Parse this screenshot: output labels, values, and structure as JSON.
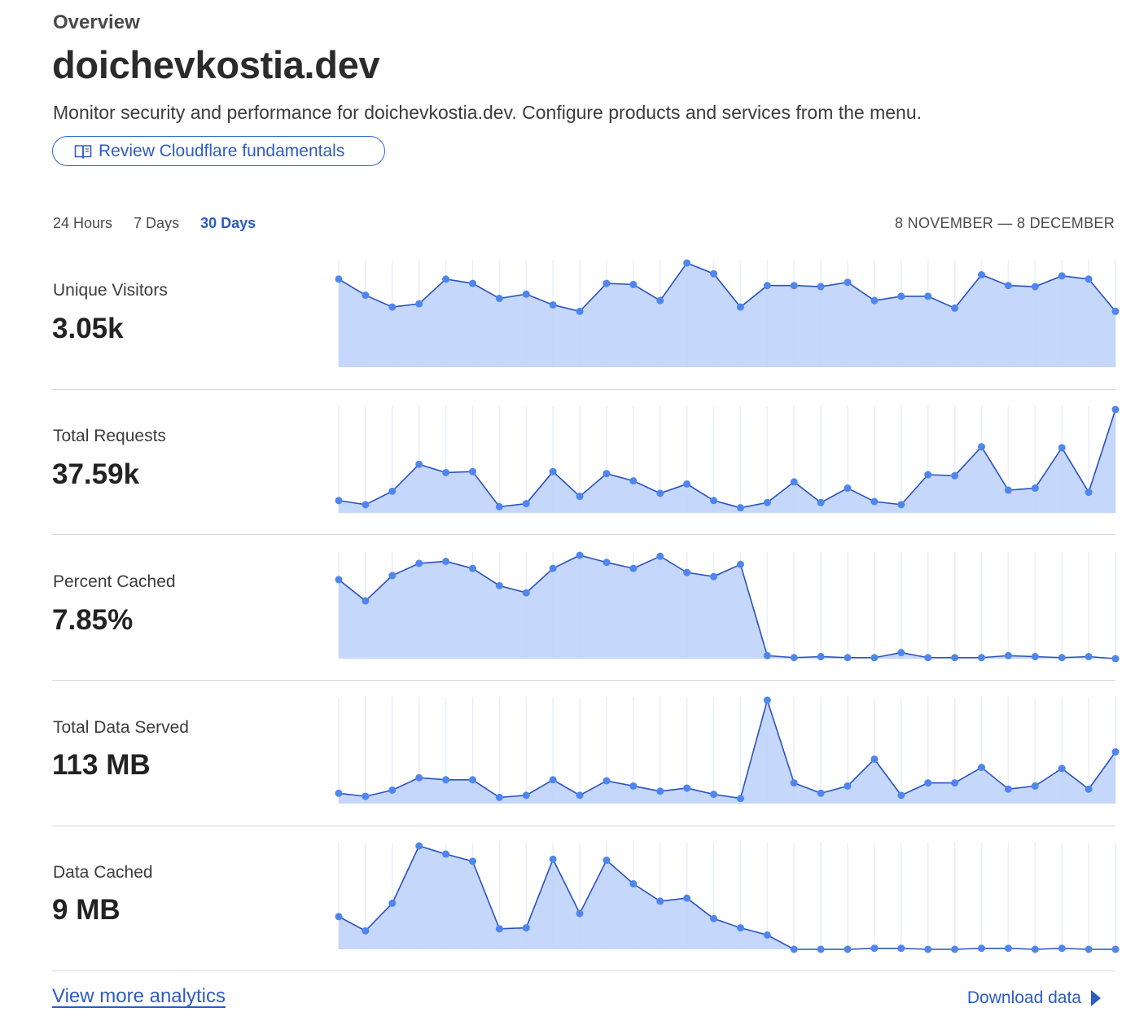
{
  "header": {
    "overview_label": "Overview",
    "title": "doichevkostia.dev",
    "description": "Monitor security and performance for doichevkostia.dev. Configure products and services from the menu.",
    "fundamentals_button": "Review Cloudflare fundamentals"
  },
  "range": {
    "tabs": [
      {
        "label": "24 Hours",
        "active": false
      },
      {
        "label": "7 Days",
        "active": false
      },
      {
        "label": "30 Days",
        "active": true
      }
    ],
    "date_label": "8 NOVEMBER — 8 DECEMBER"
  },
  "colors": {
    "accent": "#2c5cc5",
    "line": "#2a52be",
    "fill": "#c2d5fa",
    "point": "#4f86ee",
    "grid": "#e8eefb"
  },
  "metrics": [
    {
      "label": "Unique Visitors",
      "value": "3.05k"
    },
    {
      "label": "Total Requests",
      "value": "37.59k"
    },
    {
      "label": "Percent Cached",
      "value": "7.85%"
    },
    {
      "label": "Total Data Served",
      "value": "113 MB"
    },
    {
      "label": "Data Cached",
      "value": "9 MB"
    }
  ],
  "chart_data": [
    {
      "type": "area",
      "series": [
        {
          "values": [
            82,
            67,
            56,
            59,
            82,
            78,
            64,
            68,
            58,
            52,
            78,
            77,
            62,
            97,
            87,
            56,
            76,
            76,
            75,
            79,
            62,
            66,
            66,
            55,
            86,
            76,
            75,
            85,
            82,
            52
          ]
        }
      ]
    },
    {
      "type": "area",
      "series": [
        {
          "values": [
            12,
            8,
            21,
            47,
            39,
            40,
            6,
            9,
            40,
            16,
            38,
            31,
            19,
            28,
            12,
            5,
            10,
            30,
            10,
            24,
            11,
            8,
            37,
            36,
            64,
            22,
            24,
            63,
            20,
            100
          ]
        }
      ]
    },
    {
      "type": "area",
      "series": [
        {
          "values": [
            78,
            57,
            82,
            94,
            96,
            89,
            72,
            65,
            89,
            102,
            95,
            89,
            101,
            85,
            81,
            93,
            3,
            1,
            2,
            1,
            1,
            6,
            1,
            1,
            1,
            3,
            2,
            1,
            2,
            0
          ]
        }
      ]
    },
    {
      "type": "area",
      "series": [
        {
          "values": [
            10,
            7,
            13,
            25,
            23,
            23,
            6,
            8,
            23,
            8,
            22,
            17,
            12,
            15,
            9,
            5,
            100,
            20,
            10,
            17,
            43,
            8,
            20,
            20,
            35,
            14,
            17,
            34,
            14,
            50
          ]
        }
      ]
    },
    {
      "type": "area",
      "series": [
        {
          "values": [
            32,
            18,
            45,
            101,
            93,
            86,
            20,
            21,
            88,
            35,
            87,
            64,
            47,
            50,
            30,
            21,
            14,
            0,
            0,
            0,
            1,
            1,
            0,
            0,
            1,
            1,
            0,
            1,
            0,
            0
          ]
        }
      ]
    }
  ],
  "footer": {
    "view_more": "View more analytics",
    "download": "Download data"
  }
}
